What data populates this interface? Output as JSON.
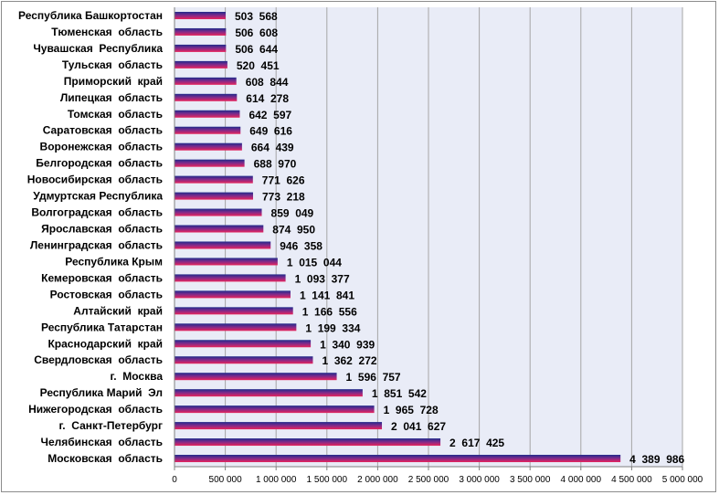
{
  "chart_data": {
    "type": "bar",
    "orientation": "horizontal",
    "title": "",
    "xlabel": "",
    "ylabel": "",
    "xlim": [
      0,
      5000000
    ],
    "grid": true,
    "legend": "none",
    "colors": {
      "bar_top": "#1f2a8a",
      "bar_bottom": "#e8245c",
      "plot_bg": "#e9ecf7",
      "grid": "#a6a6a6"
    },
    "categories": [
      "Республика Башкортостан",
      "Тюменская  область",
      "Чувашская  Республика",
      "Тульская  область",
      "Приморский  край",
      "Липецкая  область",
      "Томская  область",
      "Саратовская  область",
      "Воронежская  область",
      "Белгородская  область",
      "Новосибирская  область",
      "Удмуртская Республика",
      "Волгоградская  область",
      "Ярославская  область",
      "Ленинградская  область",
      "Республика Крым",
      "Кемеровская  область",
      "Ростовская  область",
      "Алтайский  край",
      "Республика Татарстан",
      "Краснодарский  край",
      "Свердловская  область",
      "г.  Москва",
      "Республика Марий  Эл",
      "Нижегородская  область",
      "г.  Санкт-Петербург",
      "Челябинская  область",
      "Московская  область"
    ],
    "values": [
      503568,
      506608,
      506644,
      520451,
      608844,
      614278,
      642597,
      649616,
      664439,
      688970,
      771626,
      773218,
      859049,
      874950,
      946358,
      1015044,
      1093377,
      1141841,
      1166556,
      1199334,
      1340939,
      1362272,
      1596757,
      1851542,
      1965728,
      2041627,
      2617425,
      4389986
    ],
    "data_labels": [
      "503  568",
      "506  608",
      "506  644",
      "520  451",
      "608  844",
      "614  278",
      "642  597",
      "649  616",
      "664  439",
      "688  970",
      "771  626",
      "773  218",
      "859  049",
      "874  950",
      "946  358",
      "1  015  044",
      "1  093  377",
      "1  141  841",
      "1  166  556",
      "1  199  334",
      "1  340  939",
      "1  362  272",
      "1  596  757",
      "1  851  542",
      "1  965  728",
      "2  041  627",
      "2  617  425",
      "4  389  986"
    ],
    "tick_values": [
      0,
      500000,
      1000000,
      1500000,
      2000000,
      2500000,
      3000000,
      3500000,
      4000000,
      4500000,
      5000000
    ],
    "tick_labels": [
      "0",
      "500 000",
      "1 000 000",
      "1 500 000",
      "2 000 000",
      "2 500 000",
      "3 000 000",
      "3 500 000",
      "4 000 000",
      "4 500 000",
      "5 000 000"
    ]
  }
}
